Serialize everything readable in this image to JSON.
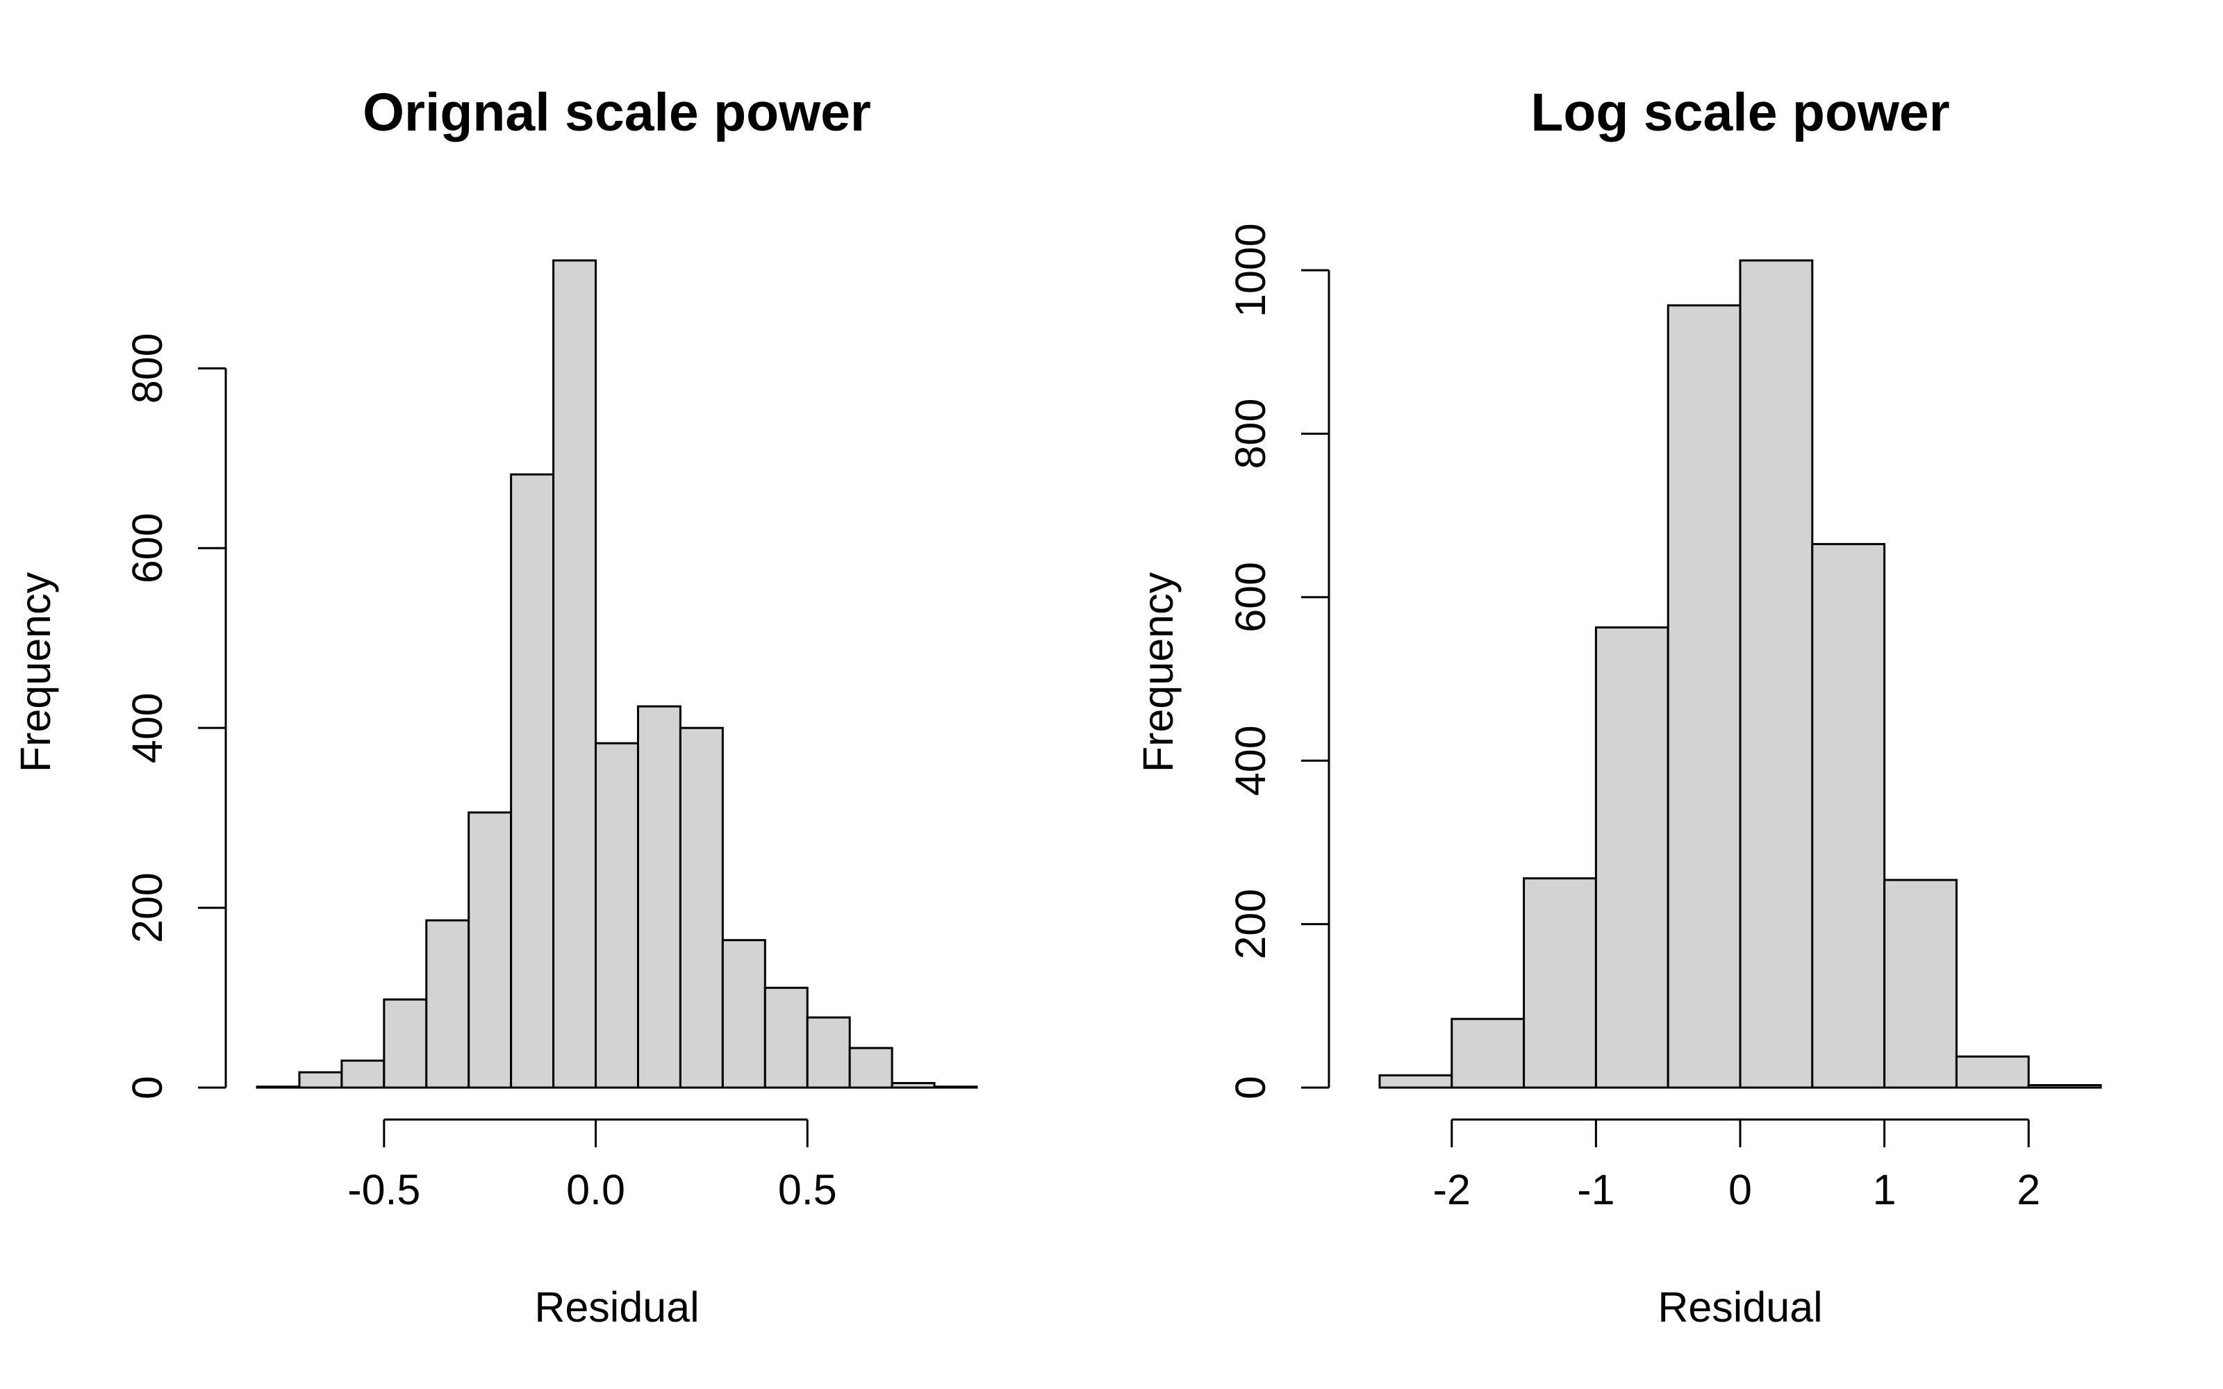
{
  "chart_data": [
    {
      "type": "bar",
      "title": "Orignal scale power",
      "xlabel": "Residual",
      "ylabel": "Frequency",
      "bin_edges": [
        -0.8,
        -0.75,
        -0.7,
        -0.65,
        -0.6,
        -0.55,
        -0.5,
        -0.45,
        -0.4,
        -0.35,
        -0.3,
        -0.25,
        -0.2,
        -0.15,
        -0.1,
        -0.05,
        0.0,
        0.05,
        0.1,
        0.15,
        0.2,
        0.25,
        0.3,
        0.35,
        0.4,
        0.45,
        0.5,
        0.55,
        0.6,
        0.65,
        0.7,
        0.75,
        0.8,
        0.85,
        0.9
      ],
      "values_note": "",
      "bars": [
        {
          "x0": -0.8,
          "x1": -0.7,
          "value": 1
        },
        {
          "x0": -0.7,
          "x1": -0.6,
          "value": 17
        },
        {
          "x0": -0.6,
          "x1": -0.5,
          "value": 30
        },
        {
          "x0": -0.5,
          "x1": -0.4,
          "value": 98
        },
        {
          "x0": -0.4,
          "x1": -0.3,
          "value": 186
        },
        {
          "x0": -0.3,
          "x1": -0.2,
          "value": 306
        },
        {
          "x0": -0.2,
          "x1": -0.1,
          "value": 682
        },
        {
          "x0": -0.1,
          "x1": 0.0,
          "value": 920
        },
        {
          "x0": 0.0,
          "x1": 0.1,
          "value": 383
        },
        {
          "x0": 0.1,
          "x1": 0.2,
          "value": 424
        },
        {
          "x0": 0.2,
          "x1": 0.3,
          "value": 400
        },
        {
          "x0": 0.3,
          "x1": 0.4,
          "value": 164
        },
        {
          "x0": 0.4,
          "x1": 0.5,
          "value": 111
        },
        {
          "x0": 0.5,
          "x1": 0.6,
          "value": 78
        },
        {
          "x0": 0.6,
          "x1": 0.7,
          "value": 44
        },
        {
          "x0": 0.7,
          "x1": 0.8,
          "value": 5
        },
        {
          "x0": 0.8,
          "x1": 0.9,
          "value": 1
        }
      ],
      "xlim": [
        -0.8,
        0.9
      ],
      "ylim": [
        0,
        920
      ],
      "xticks": [
        -0.5,
        0.0,
        0.5
      ],
      "xtick_labels": [
        "-0.5",
        "0.0",
        "0.5"
      ],
      "yticks": [
        0,
        200,
        400,
        600,
        800
      ],
      "ytick_labels": [
        "0",
        "200",
        "400",
        "600",
        "800"
      ],
      "grid": false
    },
    {
      "type": "bar",
      "title": "Log scale power",
      "xlabel": "Residual",
      "ylabel": "Frequency",
      "bars": [
        {
          "x0": -2.5,
          "x1": -2.0,
          "value": 15
        },
        {
          "x0": -2.0,
          "x1": -1.5,
          "value": 84
        },
        {
          "x0": -1.5,
          "x1": -1.0,
          "value": 256
        },
        {
          "x0": -1.0,
          "x1": -0.5,
          "value": 563
        },
        {
          "x0": -0.5,
          "x1": 0.0,
          "value": 957
        },
        {
          "x0": 0.0,
          "x1": 0.5,
          "value": 1012
        },
        {
          "x0": 0.5,
          "x1": 1.0,
          "value": 665
        },
        {
          "x0": 1.0,
          "x1": 1.5,
          "value": 254
        },
        {
          "x0": 1.5,
          "x1": 2.0,
          "value": 38
        },
        {
          "x0": 2.0,
          "x1": 2.5,
          "value": 3
        }
      ],
      "xlim": [
        -2.5,
        2.5
      ],
      "ylim": [
        0,
        1012
      ],
      "xticks": [
        -2,
        -1,
        0,
        1,
        2
      ],
      "xtick_labels": [
        "-2",
        "-1",
        "0",
        "1",
        "2"
      ],
      "yticks": [
        0,
        200,
        400,
        600,
        800,
        1000
      ],
      "ytick_labels": [
        "0",
        "200",
        "400",
        "600",
        "800",
        "1000"
      ],
      "grid": false
    }
  ]
}
